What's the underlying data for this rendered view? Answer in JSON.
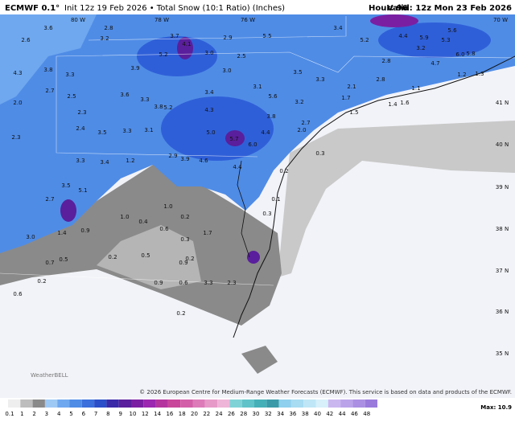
{
  "header": {
    "model": "ECMWF 0.1°",
    "subtitle": "Init 12z 19 Feb 2026 • Total Snow (10:1 Ratio) (Inches)",
    "hour": "Hour: 96",
    "valid": "Valid: 12z Mon 23 Feb 2026"
  },
  "lon_labels": [
    "80 W",
    "78 W",
    "76 W",
    "70 W"
  ],
  "lat_labels": [
    "41 N",
    "40 N",
    "39 N",
    "38 N",
    "37 N",
    "36 N",
    "35 N"
  ],
  "map_labels": [
    "2.6",
    "3.6",
    "2.8",
    "3.2",
    "3.7",
    "4.1",
    "5.2",
    "3.0",
    "2.9",
    "5.5",
    "3.4",
    "5.2",
    "4.4",
    "5.9",
    "5.6",
    "5.3",
    "3.2",
    "4.7",
    "6.0",
    "5.8",
    "3.8",
    "3.3",
    "4.3",
    "3.9",
    "3.0",
    "3.5",
    "3.3",
    "2.5",
    "2.8",
    "2.1",
    "2.8",
    "1.5",
    "4.3",
    "3.8",
    "5.2",
    "3.3",
    "3.6",
    "3.4",
    "3.1",
    "5.6",
    "3.2",
    "2.7",
    "2.5",
    "2.0",
    "2.3",
    "2.4",
    "3.5",
    "3.3",
    "3.1",
    "5.0",
    "5.7",
    "6.0",
    "4.4",
    "3.8",
    "2.7",
    "2.0",
    "2.3",
    "3.3",
    "3.4",
    "1.2",
    "2.9",
    "3.9",
    "4.6",
    "4.4",
    "5.1",
    "3.5",
    "2.7",
    "3.0",
    "1.4",
    "0.9",
    "1.0",
    "0.4",
    "0.2",
    "1.0",
    "0.6",
    "0.3",
    "0.2",
    "1.7",
    "0.9",
    "0.5",
    "0.2",
    "0.7",
    "0.5",
    "0.2",
    "0.6",
    "0.9",
    "0.6",
    "0.2",
    "0.2",
    "0.1",
    "0.3",
    "0.3",
    "1.7",
    "1.4",
    "1.6",
    "1.1",
    "1.2",
    "1.3",
    "2.3",
    "3.3"
  ],
  "logo": "WeatherBELL",
  "copyright": "© 2026 European Centre for Medium-Range Weather Forecasts (ECMWF). This service is based on data and products of the ECMWF.",
  "legend": {
    "ticks": [
      "0.1",
      "1",
      "2",
      "3",
      "4",
      "5",
      "6",
      "7",
      "8",
      "9",
      "10",
      "12",
      "14",
      "16",
      "18",
      "20",
      "22",
      "24",
      "26",
      "28",
      "30",
      "32",
      "34",
      "36",
      "38",
      "40",
      "42",
      "44",
      "46",
      "48"
    ],
    "colors": [
      "#eeeeee",
      "#bdbdbd",
      "#8a8a8a",
      "#9ec9f5",
      "#6fa8ef",
      "#4f8ce6",
      "#3a6fdc",
      "#2b4fc9",
      "#3a2aa8",
      "#5a1f9c",
      "#7b1fa2",
      "#9c27b0",
      "#b5359f",
      "#c9479a",
      "#d35fa8",
      "#dd7bb8",
      "#e69ac8",
      "#efb5d8",
      "#7fd3d6",
      "#5fc3c9",
      "#46b0b8",
      "#3a9aa8",
      "#8fd0ee",
      "#a7dcf2",
      "#bfe6f6",
      "#d7f0fa",
      "#cbb7f0",
      "#bba3ea",
      "#aa8fe3",
      "#9a7bdc"
    ]
  },
  "max": "Max: 10.9"
}
